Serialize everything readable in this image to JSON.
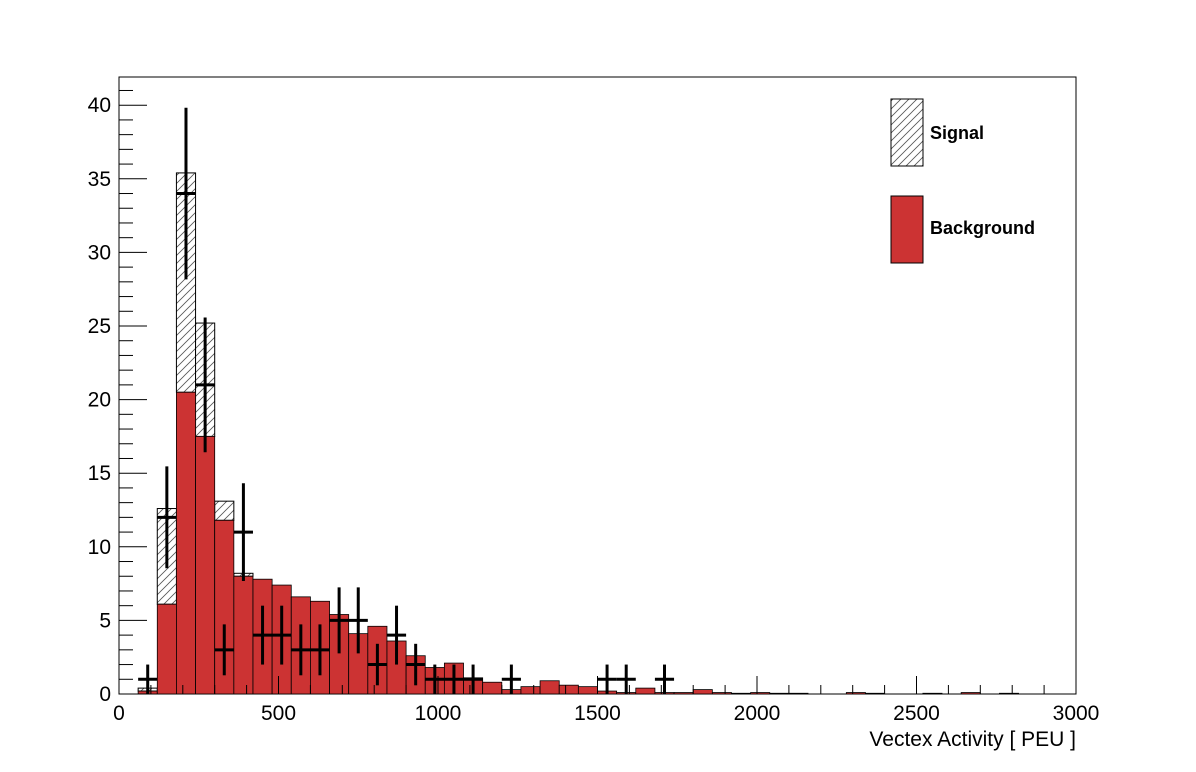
{
  "chart_data": {
    "type": "bar",
    "title": "",
    "xlabel": "Vectex Activity  [ PEU ]",
    "ylabel": "",
    "xlim": [
      0,
      3000
    ],
    "ylim": [
      0,
      42
    ],
    "grid": false,
    "legend_position": "top-right",
    "x_ticks": [
      {
        "value": 0,
        "label": "0"
      },
      {
        "value": 500,
        "label": "500"
      },
      {
        "value": 1000,
        "label": "1000"
      },
      {
        "value": 1500,
        "label": "1500"
      },
      {
        "value": 2000,
        "label": "2000"
      },
      {
        "value": 2500,
        "label": "2500"
      },
      {
        "value": 3000,
        "label": "3000"
      }
    ],
    "y_ticks": [
      {
        "value": 0,
        "label": "0"
      },
      {
        "value": 5,
        "label": "5"
      },
      {
        "value": 10,
        "label": "10"
      },
      {
        "value": 15,
        "label": "15"
      },
      {
        "value": 20,
        "label": "20"
      },
      {
        "value": 25,
        "label": "25"
      },
      {
        "value": 30,
        "label": "30"
      },
      {
        "value": 35,
        "label": "35"
      },
      {
        "value": 40,
        "label": "40"
      }
    ],
    "bin_width": 60,
    "bins": [
      {
        "x": 60,
        "background": 0.2,
        "total": 0.4
      },
      {
        "x": 120,
        "background": 6.1,
        "total": 12.6
      },
      {
        "x": 180,
        "background": 20.5,
        "total": 35.4
      },
      {
        "x": 240,
        "background": 17.5,
        "total": 25.2
      },
      {
        "x": 300,
        "background": 11.8,
        "total": 13.1
      },
      {
        "x": 360,
        "background": 8.0,
        "total": 8.2
      },
      {
        "x": 420,
        "background": 7.8,
        "total": 7.8
      },
      {
        "x": 480,
        "background": 7.4,
        "total": 7.4
      },
      {
        "x": 540,
        "background": 6.6,
        "total": 6.6
      },
      {
        "x": 600,
        "background": 6.3,
        "total": 6.3
      },
      {
        "x": 660,
        "background": 5.4,
        "total": 5.4
      },
      {
        "x": 720,
        "background": 4.1,
        "total": 4.1
      },
      {
        "x": 780,
        "background": 4.6,
        "total": 4.6
      },
      {
        "x": 840,
        "background": 3.6,
        "total": 3.6
      },
      {
        "x": 900,
        "background": 2.6,
        "total": 2.6
      },
      {
        "x": 960,
        "background": 1.8,
        "total": 1.8
      },
      {
        "x": 1020,
        "background": 2.1,
        "total": 2.1
      },
      {
        "x": 1080,
        "background": 1.1,
        "total": 1.1
      },
      {
        "x": 1140,
        "background": 0.8,
        "total": 0.8
      },
      {
        "x": 1200,
        "background": 0.3,
        "total": 0.3
      },
      {
        "x": 1260,
        "background": 0.5,
        "total": 0.5
      },
      {
        "x": 1320,
        "background": 0.9,
        "total": 0.9
      },
      {
        "x": 1380,
        "background": 0.6,
        "total": 0.6
      },
      {
        "x": 1440,
        "background": 0.5,
        "total": 0.5
      },
      {
        "x": 1500,
        "background": 0.2,
        "total": 0.2
      },
      {
        "x": 1560,
        "background": 0.1,
        "total": 0.1
      },
      {
        "x": 1620,
        "background": 0.4,
        "total": 0.4
      },
      {
        "x": 1680,
        "background": 0.1,
        "total": 0.1
      },
      {
        "x": 1740,
        "background": 0.1,
        "total": 0.1
      },
      {
        "x": 1800,
        "background": 0.3,
        "total": 0.3
      },
      {
        "x": 1860,
        "background": 0.1,
        "total": 0.1
      },
      {
        "x": 1920,
        "background": 0.05,
        "total": 0.05
      },
      {
        "x": 1980,
        "background": 0.1,
        "total": 0.1
      },
      {
        "x": 2040,
        "background": 0.05,
        "total": 0.05
      },
      {
        "x": 2100,
        "background": 0.05,
        "total": 0.05
      },
      {
        "x": 2280,
        "background": 0.1,
        "total": 0.1
      },
      {
        "x": 2340,
        "background": 0.05,
        "total": 0.05
      },
      {
        "x": 2520,
        "background": 0.05,
        "total": 0.05
      },
      {
        "x": 2640,
        "background": 0.1,
        "total": 0.1
      },
      {
        "x": 2760,
        "background": 0.05,
        "total": 0.05
      }
    ],
    "data_points": [
      {
        "x": 90,
        "y": 1,
        "err": 1.0
      },
      {
        "x": 150,
        "y": 12,
        "err": 3.46
      },
      {
        "x": 210,
        "y": 34,
        "err": 5.83
      },
      {
        "x": 270,
        "y": 21,
        "err": 4.58
      },
      {
        "x": 330,
        "y": 3,
        "err": 1.73
      },
      {
        "x": 390,
        "y": 11,
        "err": 3.32
      },
      {
        "x": 450,
        "y": 4,
        "err": 2.0
      },
      {
        "x": 510,
        "y": 4,
        "err": 2.0
      },
      {
        "x": 570,
        "y": 3,
        "err": 1.73
      },
      {
        "x": 630,
        "y": 3,
        "err": 1.73
      },
      {
        "x": 690,
        "y": 5,
        "err": 2.24
      },
      {
        "x": 750,
        "y": 5,
        "err": 2.24
      },
      {
        "x": 810,
        "y": 2,
        "err": 1.41
      },
      {
        "x": 870,
        "y": 4,
        "err": 2.0
      },
      {
        "x": 930,
        "y": 2,
        "err": 1.41
      },
      {
        "x": 990,
        "y": 1,
        "err": 1.0
      },
      {
        "x": 1050,
        "y": 1,
        "err": 1.0
      },
      {
        "x": 1110,
        "y": 1,
        "err": 1.0
      },
      {
        "x": 1230,
        "y": 1,
        "err": 1.0
      },
      {
        "x": 1530,
        "y": 1,
        "err": 1.0
      },
      {
        "x": 1590,
        "y": 1,
        "err": 1.0
      },
      {
        "x": 1710,
        "y": 1,
        "err": 1.0
      }
    ],
    "legend": [
      {
        "key": "signal",
        "label": "Signal",
        "style": "hatched"
      },
      {
        "key": "background",
        "label": "Background",
        "style": "filled"
      }
    ],
    "colors": {
      "background_fill": "#cc3333",
      "outline": "#000000",
      "hatch": "#555555",
      "data": "#000000"
    }
  }
}
